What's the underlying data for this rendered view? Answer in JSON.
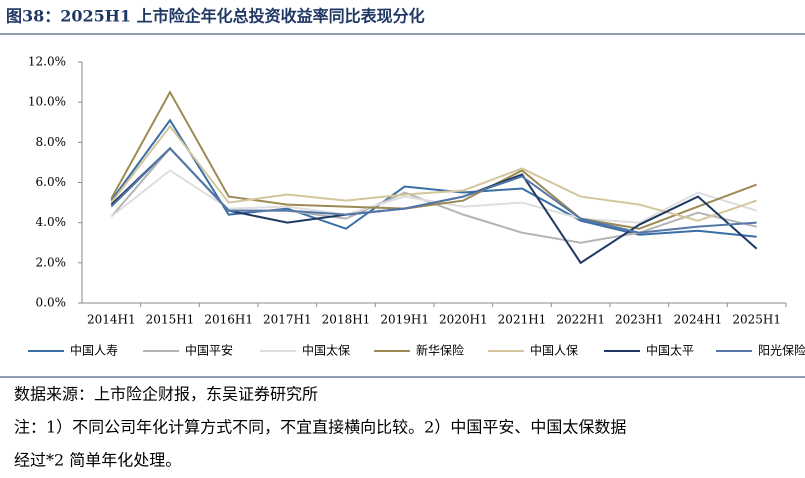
{
  "chart_data": {
    "type": "line",
    "title": "图38：2025H1 上市险企年化总投资收益率同比表现分化",
    "categories": [
      "2014H1",
      "2015H1",
      "2016H1",
      "2017H1",
      "2018H1",
      "2019H1",
      "2020H1",
      "2021H1",
      "2022H1",
      "2023H1",
      "2024H1",
      "2025H1"
    ],
    "series": [
      {
        "name": "中国人寿",
        "color": "#3a6ea5",
        "values": [
          5.1,
          9.1,
          4.4,
          4.7,
          3.7,
          5.8,
          5.5,
          5.7,
          4.1,
          3.4,
          3.6,
          3.3
        ]
      },
      {
        "name": "中国平安",
        "color": "#b4b4b4",
        "values": [
          4.3,
          7.7,
          4.6,
          4.6,
          4.2,
          5.5,
          4.4,
          3.5,
          3.0,
          3.5,
          4.5,
          3.8
        ]
      },
      {
        "name": "中国太保",
        "color": "#dedede",
        "values": [
          4.3,
          6.6,
          4.7,
          4.8,
          4.4,
          5.3,
          4.8,
          5.0,
          4.2,
          4.0,
          5.5,
          4.6
        ]
      },
      {
        "name": "新华保险",
        "color": "#9c8a54",
        "values": [
          5.2,
          10.5,
          5.3,
          4.9,
          4.8,
          4.7,
          5.1,
          6.6,
          4.2,
          3.7,
          4.8,
          5.9
        ]
      },
      {
        "name": "中国人保",
        "color": "#d4c59c",
        "values": [
          5.0,
          8.8,
          5.0,
          5.4,
          5.1,
          5.4,
          5.6,
          6.7,
          5.3,
          4.9,
          4.1,
          5.1
        ]
      },
      {
        "name": "中国太平",
        "color": "#1f3864",
        "values": [
          4.9,
          7.7,
          4.6,
          4.0,
          4.4,
          4.7,
          5.3,
          6.4,
          2.0,
          3.9,
          5.3,
          2.7
        ]
      },
      {
        "name": "阳光保险",
        "color": "#5577a8",
        "values": [
          4.8,
          7.7,
          4.6,
          4.6,
          4.4,
          4.7,
          5.3,
          6.3,
          4.2,
          3.5,
          3.8,
          4.0
        ]
      }
    ],
    "ylim": [
      0,
      12
    ],
    "yticks": [
      {
        "value": 0,
        "label": "0.0%"
      },
      {
        "value": 2,
        "label": "2.0%"
      },
      {
        "value": 4,
        "label": "4.0%"
      },
      {
        "value": 6,
        "label": "6.0%"
      },
      {
        "value": 8,
        "label": "8.0%"
      },
      {
        "value": 10,
        "label": "10.0%"
      },
      {
        "value": 12,
        "label": "12.0%"
      }
    ],
    "grid": false,
    "legend": "bottom",
    "source": "数据来源：上市险企财报，东吴证券研究所",
    "notes": [
      "注：1）不同公司年化计算方式不同，不宜直接横向比较。2）中国平安、中国太保数据",
      "经过*2 简单年化处理。"
    ]
  }
}
